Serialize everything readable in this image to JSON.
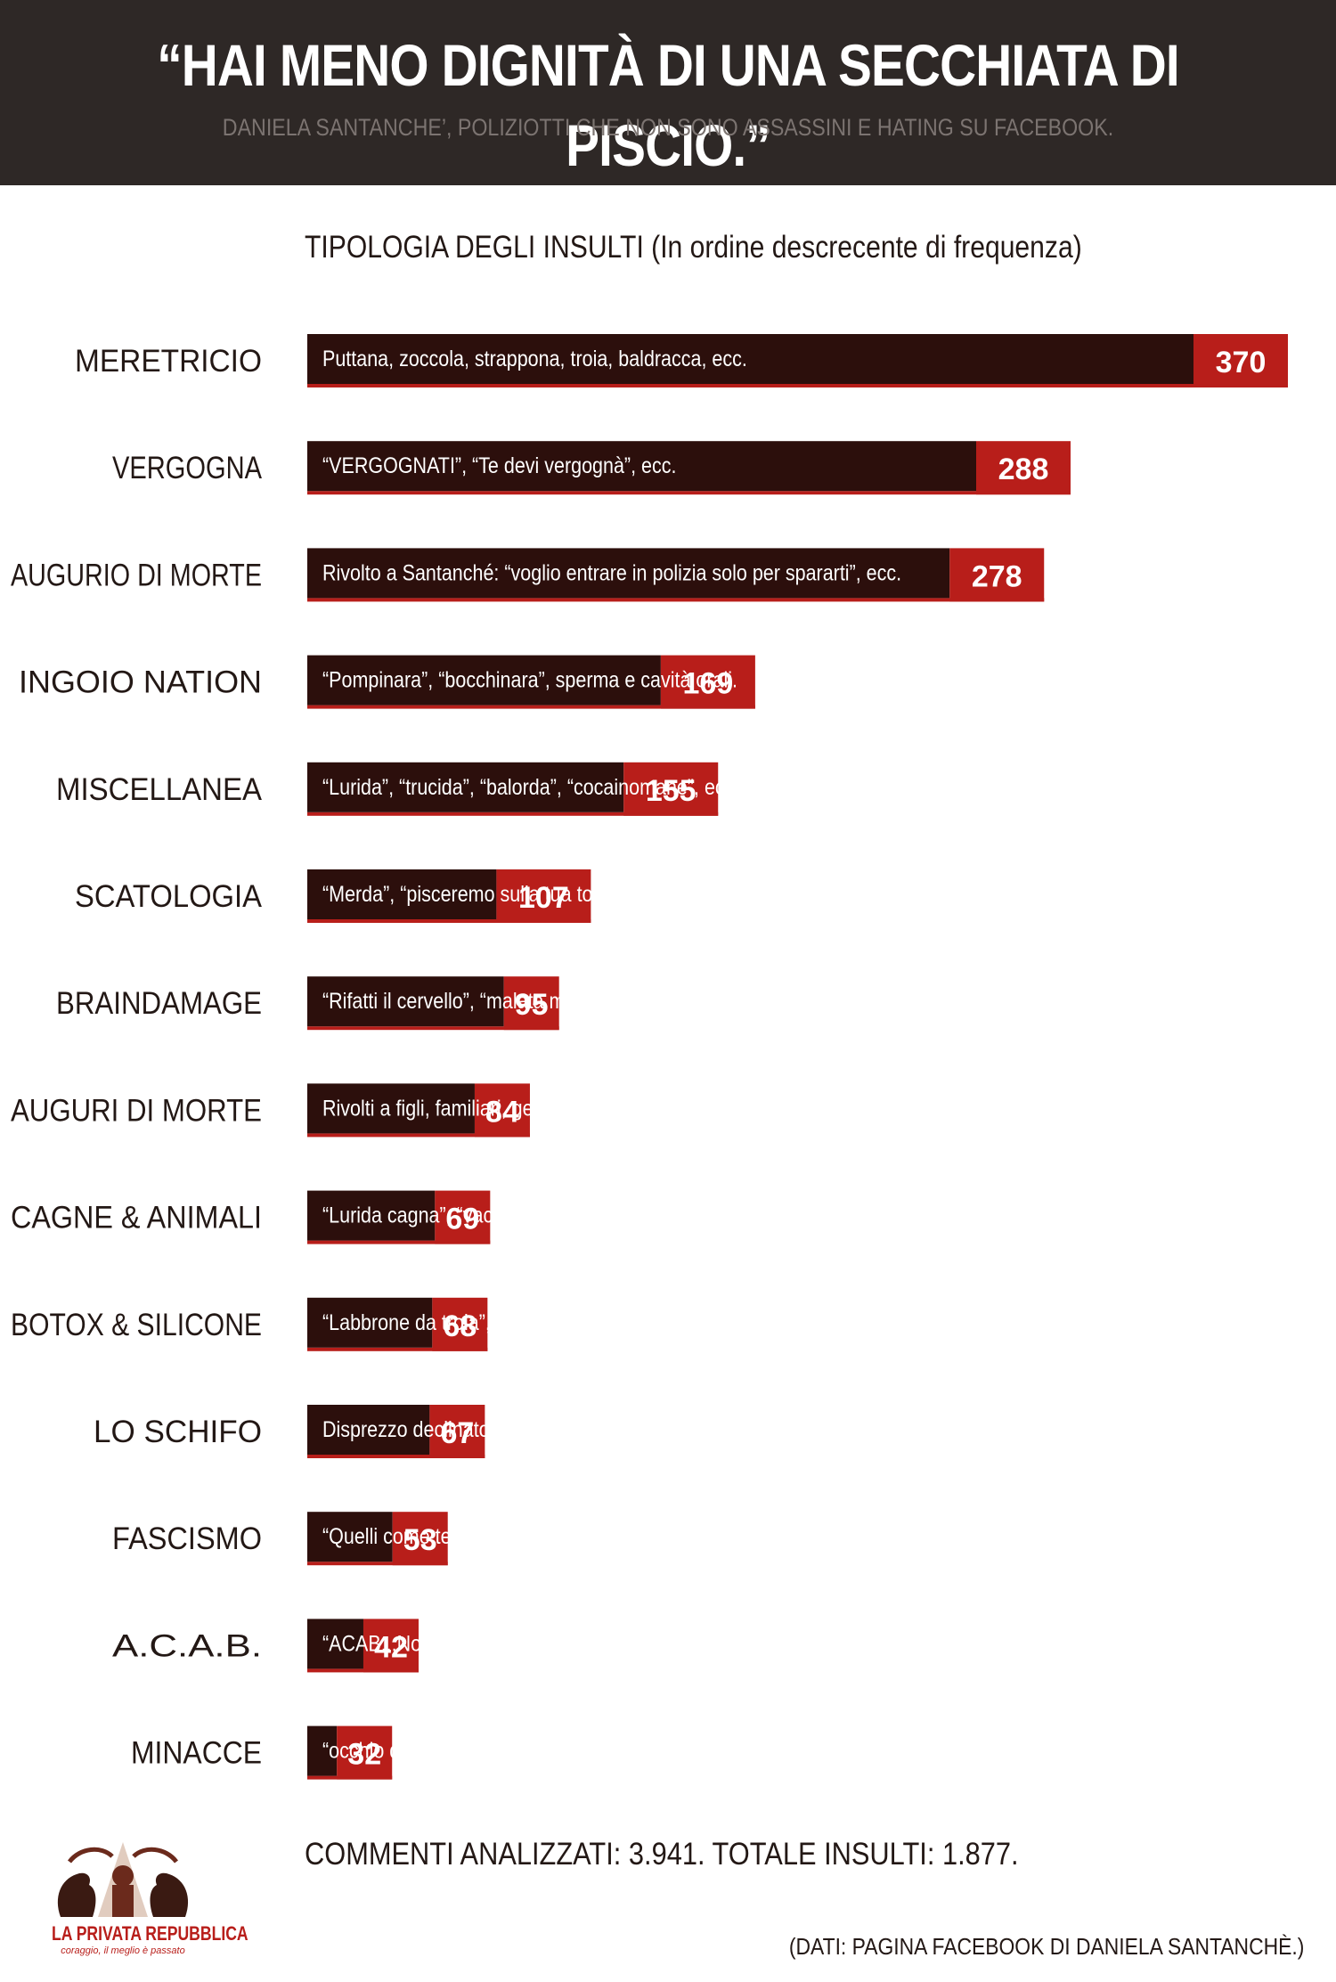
{
  "header": {
    "title": "“HAI MENO DIGNITÀ DI UNA SECCHIATA DI PISCIO.”",
    "subtitle": "DANIELA SANTANCHE’, POLIZIOTTI CHE NON SONO ASSASSINI E HATING SU FACEBOOK."
  },
  "colors": {
    "header_bg": "#2e2826",
    "bar_dark": "#2c0f0c",
    "bar_red": "#b81e1a",
    "text_dark": "#231815"
  },
  "chart_data": {
    "type": "bar",
    "title": "TIPOLOGIA DEGLI INSULTI (In ordine descrecente di frequenza)",
    "orientation": "horizontal",
    "categories": [
      "MERETRICIO",
      "VERGOGNA",
      "AUGURIO DI MORTE",
      "INGOIO NATION",
      "MISCELLANEA",
      "SCATOLOGIA",
      "BRAINDAMAGE",
      "AUGURI DI MORTE",
      "CAGNE & ANIMALI",
      "BOTOX & SILICONE",
      "LO SCHIFO",
      "FASCISMO",
      "A.C.A.B.",
      "MINACCE"
    ],
    "values": [
      370,
      288,
      278,
      169,
      155,
      107,
      95,
      84,
      69,
      68,
      67,
      53,
      42,
      32
    ],
    "descriptions": [
      "Puttana, zoccola, strappona, troia, baldracca, ecc.",
      "“VERGOGNATI”, “Te devi vergognà”, ecc.",
      "Rivolto a Santanché: “voglio entrare in polizia solo per spararti”, ecc.",
      "“Pompinara”, “bocchinara”, sperma e cavità orali.",
      "“Lurida”, “trucida”, “balorda”, “cocainomane”, ecc.",
      "“Merda”, “pisceremo sulla tua tomba”, “ecc.”",
      "“Rifatti il cervello”, “malata mentale”, ecc.",
      "Rivolti a figli, familiari, genitori di Santanché.",
      "“Lurida cagna”, “vacca”, “asina”, “verme”, ecc.",
      "“Labbrone da troia”, botulino, plastica.",
      "Disprezzo declinato in varie forme.",
      "“Quelli come te finiscono a Piazzale Loreto”.",
      "“ACAB...Non il film!”.",
      "“occhio quando cammini pè strada”."
    ],
    "xlim": [
      0,
      370
    ]
  },
  "footer": {
    "summary": "COMMENTI ANALIZZATI: 3.941. TOTALE INSULTI: 1.877.",
    "source": "(DATI: PAGINA FACEBOOK DI DANIELA SANTANCHÈ.)"
  },
  "logo": {
    "name": "LA PRIVATA REPUBBLICA",
    "tagline": "coraggio, il meglio è passato"
  }
}
